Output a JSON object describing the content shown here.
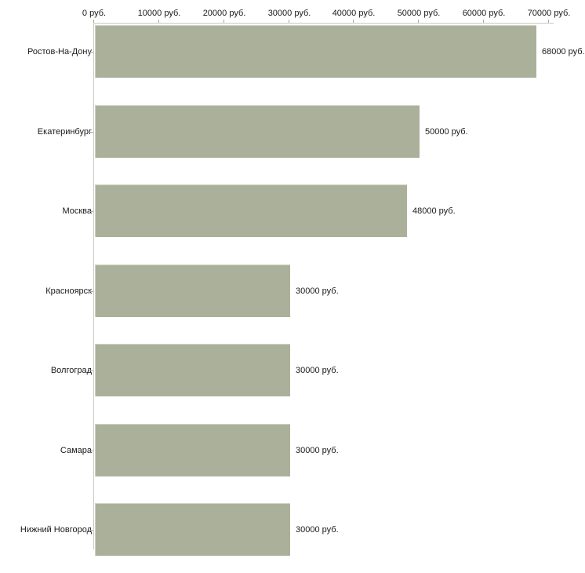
{
  "chart_data": {
    "type": "bar",
    "orientation": "horizontal",
    "title": "",
    "xlabel": "",
    "ylabel": "",
    "x_axis_position": "top",
    "xlim": [
      0,
      70000
    ],
    "grid": false,
    "legend": false,
    "unit": "руб.",
    "x_ticks": [
      {
        "value": 0,
        "label": "0 руб."
      },
      {
        "value": 10000,
        "label": "10000 руб."
      },
      {
        "value": 20000,
        "label": "20000 руб."
      },
      {
        "value": 30000,
        "label": "30000 руб."
      },
      {
        "value": 40000,
        "label": "40000 руб."
      },
      {
        "value": 50000,
        "label": "50000 руб."
      },
      {
        "value": 60000,
        "label": "60000 руб."
      },
      {
        "value": 70000,
        "label": "70000 руб."
      }
    ],
    "categories": [
      "Ростов-На-Дону",
      "Екатеринбург",
      "Москва",
      "Красноярск",
      "Волгоград",
      "Самара",
      "Нижний Новгород"
    ],
    "values": [
      68000,
      50000,
      48000,
      30000,
      30000,
      30000,
      30000
    ],
    "value_labels": [
      "68000 руб.",
      "50000 руб.",
      "48000 руб.",
      "30000 руб.",
      "30000 руб.",
      "30000 руб.",
      "30000 руб."
    ],
    "colors": {
      "bar": "#abb09a",
      "bar_edge": "#ced2c0",
      "axis": "#c9c9c9",
      "tick": "#b0ab94",
      "text": "#1a1a1a",
      "background": "#ffffff"
    }
  }
}
